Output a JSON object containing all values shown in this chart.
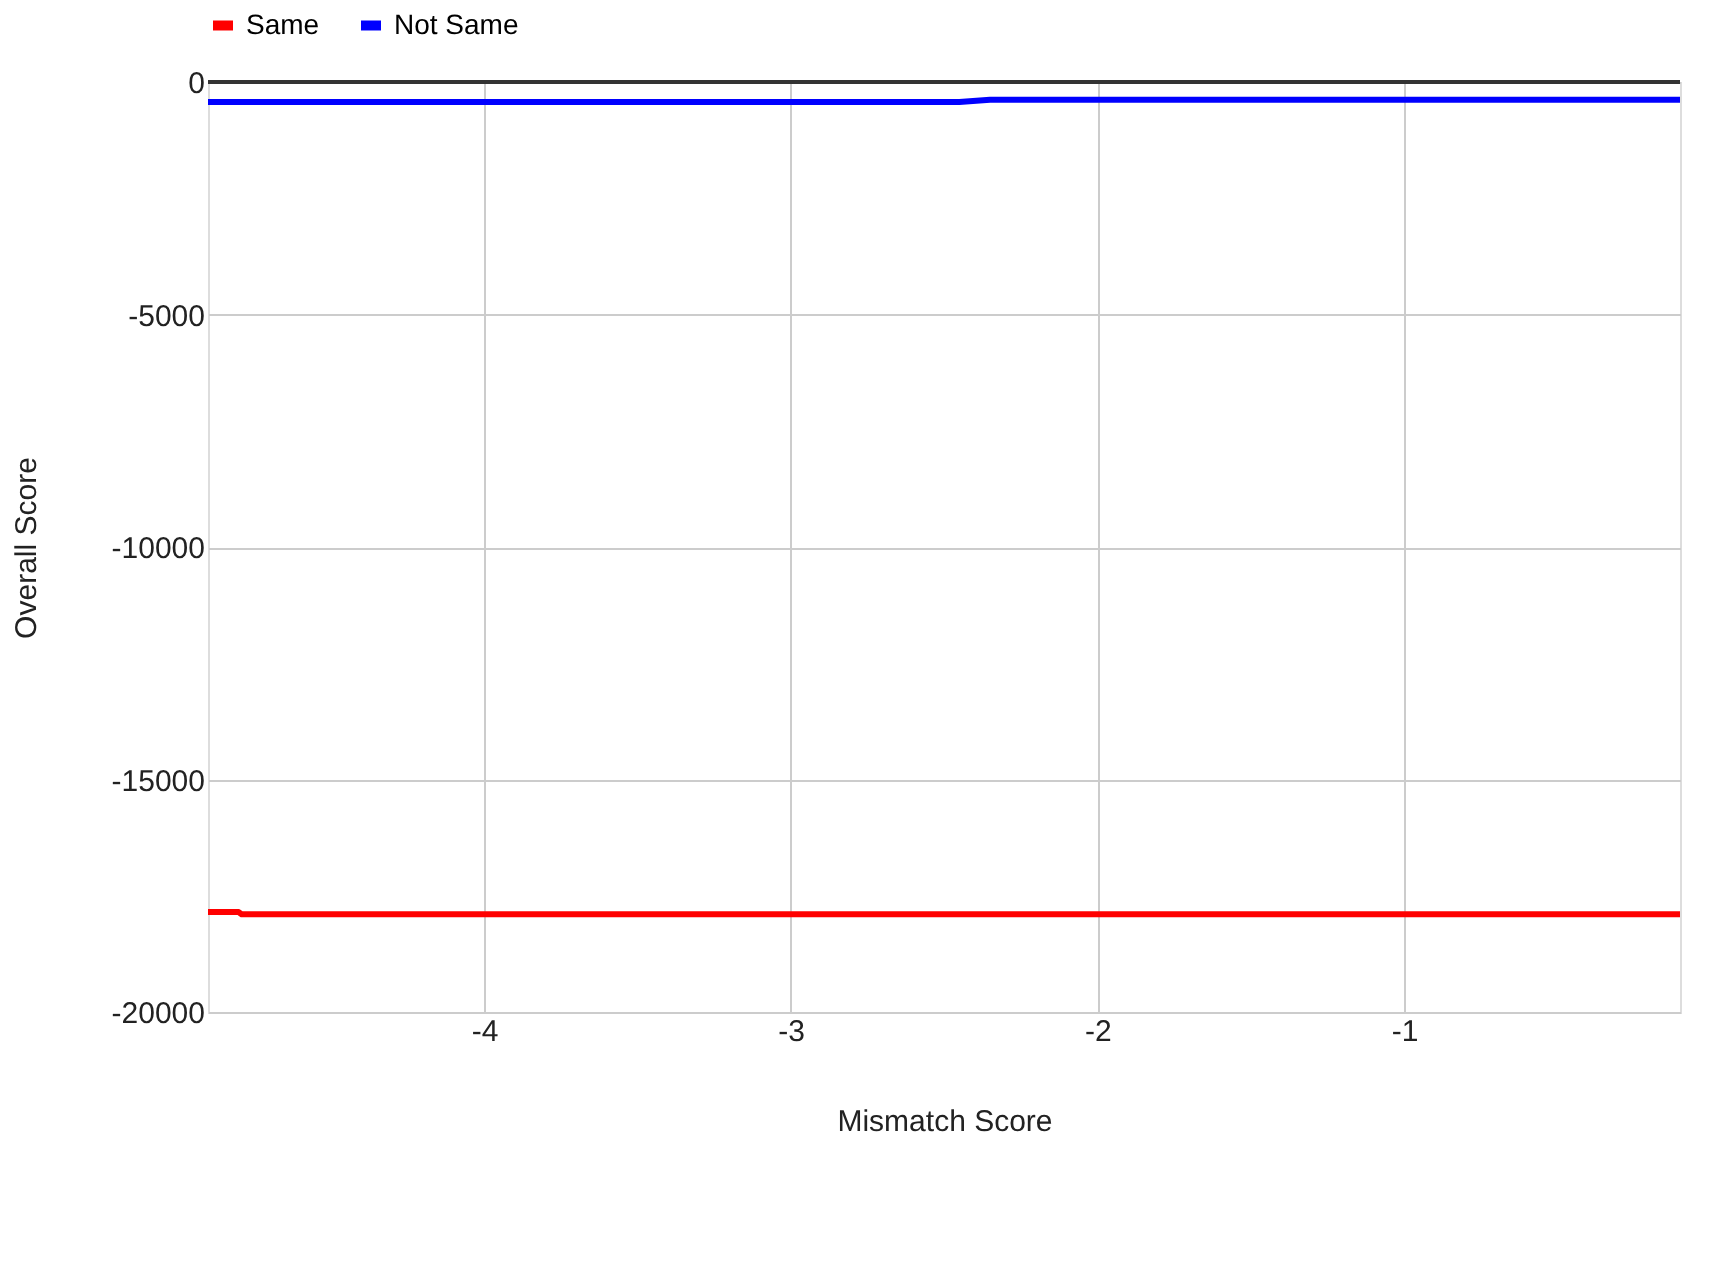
{
  "chart_data": {
    "type": "line",
    "xlabel": "Mismatch Score",
    "ylabel": "Overall Score",
    "xlim": [
      -4.9,
      -0.1
    ],
    "xticks": [
      -4,
      -3,
      -2,
      -1
    ],
    "ylim": [
      -20000,
      0
    ],
    "yticks": [
      -20000,
      -15000,
      -10000,
      -5000,
      0
    ],
    "grid": true,
    "legend": "top",
    "marker": "none",
    "line_style": "solid",
    "ref_lines": [
      {
        "axis": "y",
        "value": 0,
        "color": "#333333"
      }
    ],
    "series": [
      {
        "name": "Same",
        "color": "#ff0000",
        "x": [
          -4.9,
          -4.8,
          -4.79,
          -3,
          -2,
          -1,
          -0.1
        ],
        "values": [
          -17850,
          -17850,
          -17900,
          -17900,
          -17900,
          -17900,
          -17900
        ]
      },
      {
        "name": "Not Same",
        "color": "#0000ff",
        "x": [
          -4.9,
          -4,
          -3,
          -2.45,
          -2.35,
          -2,
          -1,
          -0.1
        ],
        "values": [
          -430,
          -430,
          -430,
          -430,
          -380,
          -380,
          -380,
          -380
        ]
      }
    ]
  }
}
